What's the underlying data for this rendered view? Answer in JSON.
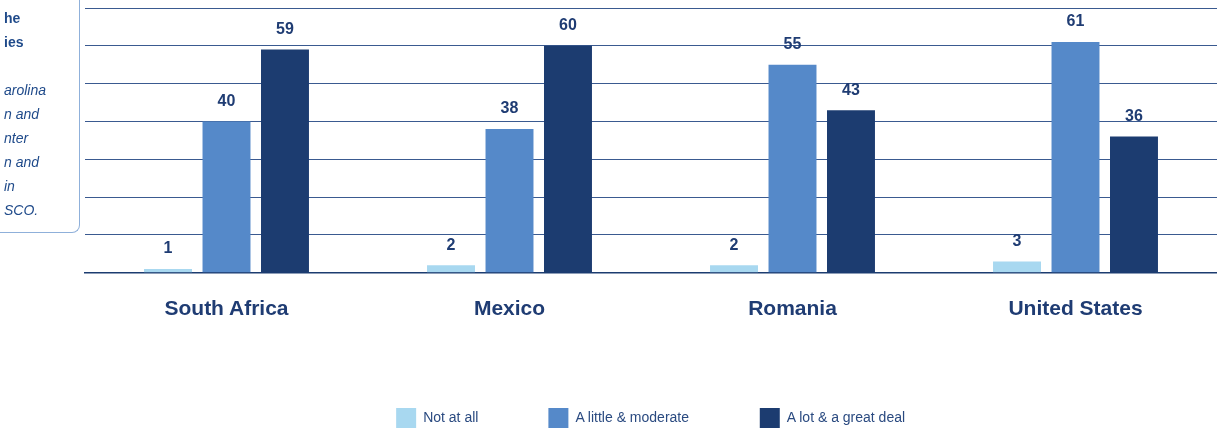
{
  "chart_data": {
    "type": "bar",
    "categories": [
      "South Africa",
      "Mexico",
      "Romania",
      "United States"
    ],
    "series": [
      {
        "name": "Not at all",
        "color": "#a8d8f0",
        "values": [
          1,
          2,
          2,
          3
        ]
      },
      {
        "name": "A little & moderate",
        "color": "#5589c9",
        "values": [
          40,
          38,
          55,
          61
        ]
      },
      {
        "name": "A lot & a great deal",
        "color": "#1c3c70",
        "values": [
          59,
          60,
          43,
          36
        ]
      }
    ],
    "ylim": [
      0,
      70
    ],
    "yticks": [
      {
        "value": 0,
        "label": null
      },
      {
        "value": 10,
        "label": null
      },
      {
        "value": 20,
        "label": null
      },
      {
        "value": 30,
        "label": null
      },
      {
        "value": 40,
        "label": null
      },
      {
        "value": 50,
        "label": null
      },
      {
        "value": 60,
        "label": null
      },
      {
        "value": 70,
        "label": null
      }
    ],
    "grid": "y",
    "tick_labels": "x",
    "legend": "bottom",
    "data_labels": true,
    "annotations": [
      "he",
      "ies",
      "arolina",
      "n and",
      "nter",
      "n and",
      "in",
      "SCO."
    ]
  }
}
